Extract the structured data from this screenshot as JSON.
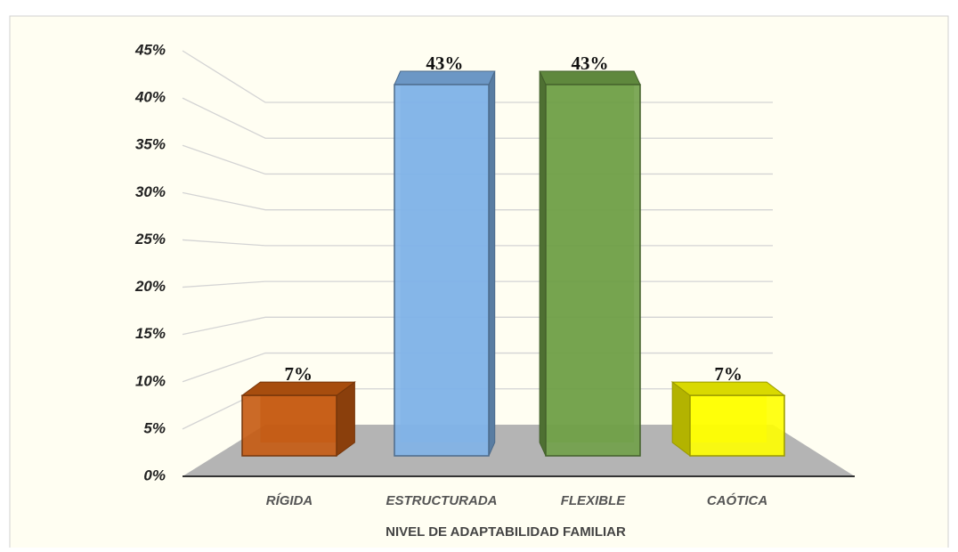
{
  "chart_data": {
    "type": "bar",
    "categories": [
      "RÍGIDA",
      "ESTRUCTURADA",
      "FLEXIBLE",
      "CAÓTICA"
    ],
    "values": [
      7,
      43,
      43,
      7
    ],
    "value_labels": [
      "7%",
      "43%",
      "43%",
      "7%"
    ],
    "colors": [
      "#c55a11",
      "#7fb2e8",
      "#70a048",
      "#ffff00"
    ],
    "xlabel": "NIVEL DE ADAPTABILIDAD FAMILIAR",
    "ylim": [
      0,
      45
    ],
    "yticks": [
      {
        "value": 0,
        "label": "0%"
      },
      {
        "value": 5,
        "label": "5%"
      },
      {
        "value": 10,
        "label": "10%"
      },
      {
        "value": 15,
        "label": "15%"
      },
      {
        "value": 20,
        "label": "20%"
      },
      {
        "value": 25,
        "label": "25%"
      },
      {
        "value": 30,
        "label": "30%"
      },
      {
        "value": 35,
        "label": "35%"
      },
      {
        "value": 40,
        "label": "40%"
      },
      {
        "value": 45,
        "label": "45%"
      }
    ],
    "grid": true
  }
}
